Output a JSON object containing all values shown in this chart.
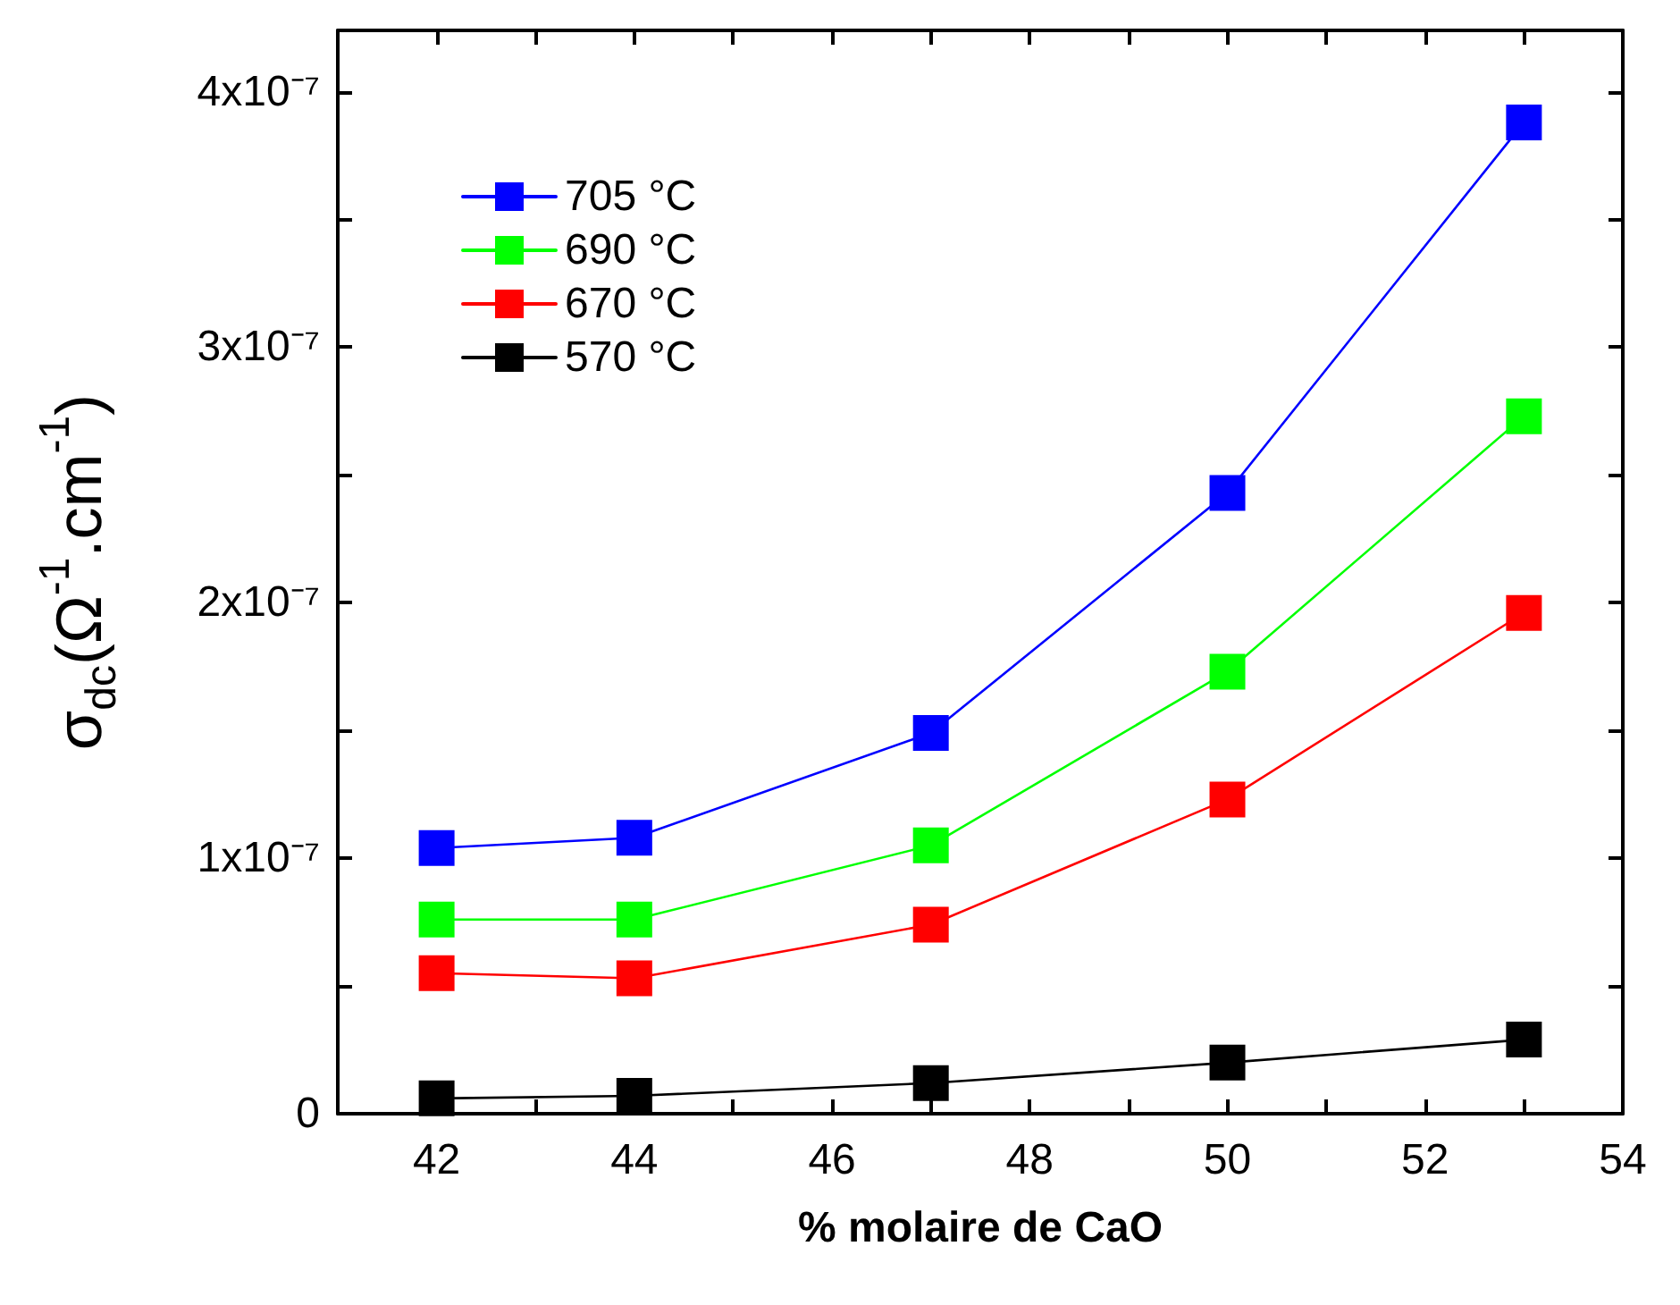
{
  "chart_data": {
    "type": "line",
    "xlabel": "% molaire de CaO",
    "ylabel": "σ$_{dc}$(Ω$^{-1}$.cm$^{-1}$)",
    "x": [
      42,
      44,
      47,
      50,
      53
    ],
    "series": [
      {
        "name": "705 °C",
        "color": "#0000ff",
        "values": [
          1.04e-07,
          1.08e-07,
          1.49e-07,
          2.43e-07,
          3.88e-07
        ]
      },
      {
        "name": "690 °C",
        "color": "#00ff00",
        "values": [
          7.6e-08,
          7.6e-08,
          1.05e-07,
          1.73e-07,
          2.73e-07
        ]
      },
      {
        "name": "670 °C",
        "color": "#ff0000",
        "values": [
          5.5e-08,
          5.3e-08,
          7.4e-08,
          1.23e-07,
          1.96e-07
        ]
      },
      {
        "name": "570 °C",
        "color": "#000000",
        "values": [
          6e-09,
          7e-09,
          1.2e-08,
          2e-08,
          2.9e-08
        ]
      }
    ],
    "xlim": [
      41,
      54
    ],
    "xticks": [
      {
        "value": 41,
        "label": null
      },
      42,
      {
        "value": 43,
        "label": null
      },
      44,
      {
        "value": 45,
        "label": null
      },
      46,
      {
        "value": 47,
        "label": null
      },
      48,
      {
        "value": 49,
        "label": null
      },
      50,
      {
        "value": 51,
        "label": null
      },
      52,
      {
        "value": 53,
        "label": null
      },
      54
    ],
    "ylim": [
      0,
      4.24e-07
    ],
    "yticks": [
      0,
      {
        "value": 5e-08,
        "label": null
      },
      {
        "value": 1e-07,
        "label": "1x10⁻⁷"
      },
      {
        "value": 1.5e-07,
        "label": null
      },
      {
        "value": 2e-07,
        "label": "2x10⁻⁷"
      },
      {
        "value": 2.5e-07,
        "label": null
      },
      {
        "value": 3e-07,
        "label": "3x10⁻⁷"
      },
      {
        "value": 3.5e-07,
        "label": null
      },
      {
        "value": 4e-07,
        "label": "4x10⁻⁷"
      }
    ],
    "grid": false,
    "legend": "top left",
    "marker": "square",
    "line_style": "solid"
  }
}
